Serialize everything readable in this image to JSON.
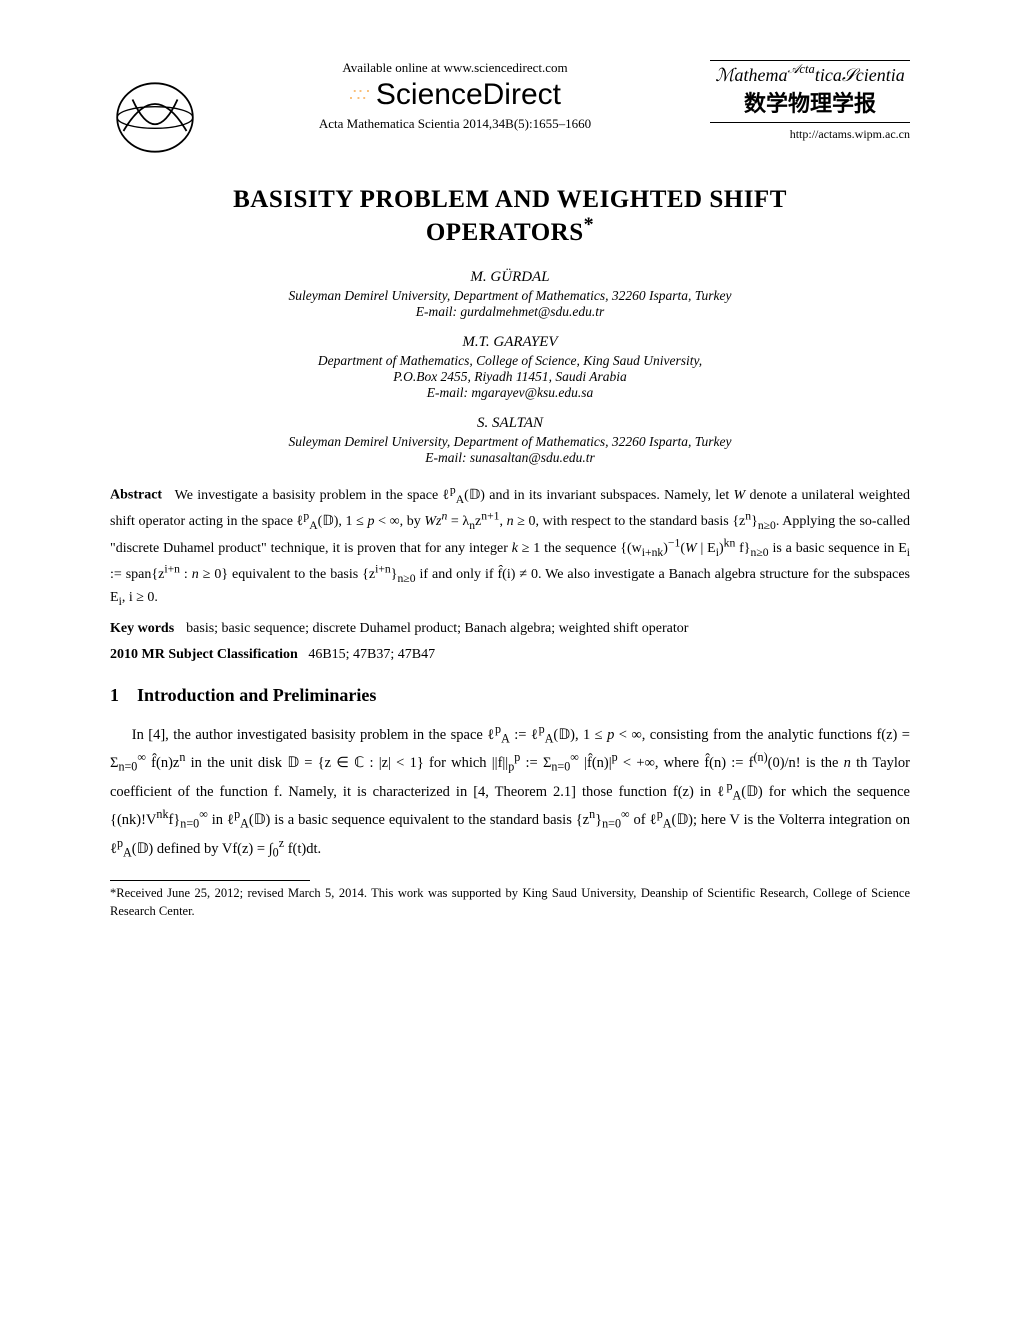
{
  "header": {
    "available_text": "Available online at www.sciencedirect.com",
    "sciencedirect": "ScienceDirect",
    "citation": "Acta Mathematica Scientia 2014,34B(5):1655–1660",
    "journal_script": "Acta Mathematica Scientia",
    "chinese": "数学物理学报",
    "url": "http://actams.wipm.ac.cn"
  },
  "title": "BASISITY PROBLEM AND WEIGHTED SHIFT OPERATORS*",
  "authors": [
    {
      "name": "M. GÜRDAL",
      "aff": "Suleyman Demirel University, Department of Mathematics, 32260 Isparta, Turkey",
      "email": "E-mail: gurdalmehmet@sdu.edu.tr"
    },
    {
      "name": "M.T. GARAYEV",
      "aff1": "Department of Mathematics, College of Science, King Saud University,",
      "aff2": "P.O.Box 2455, Riyadh 11451, Saudi Arabia",
      "email": "E-mail: mgarayev@ksu.edu.sa"
    },
    {
      "name": "S. SALTAN",
      "aff": "Suleyman Demirel University, Department of Mathematics, 32260 Isparta, Turkey",
      "email": "E-mail: sunasaltan@sdu.edu.tr"
    }
  ],
  "abstract": {
    "label": "Abstract",
    "text_html": "We investigate a basisity problem in the space ℓ<sup>p</sup><sub>A</sub>(𝔻) and in its invariant subspaces. Namely, let <i>W</i> denote a unilateral weighted shift operator acting in the space ℓ<sup>p</sup><sub>A</sub>(𝔻), 1 ≤ <i>p</i> &lt; ∞, by <i>Wz<sup>n</sup></i> = λ<sub>n</sub>z<sup>n+1</sup>, <i>n</i> ≥ 0, with respect to the standard basis {z<sup>n</sup>}<sub>n≥0</sub>. Applying the so-called \"discrete Duhamel product\" technique, it is proven that for any integer <i>k</i> ≥ 1 the sequence {(w<sub>i+nk</sub>)<sup>−1</sup>(<i>W</i> | E<sub>i</sub>)<sup>kn</sup> f}<sub>n≥0</sub> is a basic sequence in E<sub>i</sub> := span{z<sup>i+n</sup> : <i>n</i> ≥ 0} equivalent to the basis {z<sup>i+n</sup>}<sub>n≥0</sub> if and only if f̂(i) ≠ 0. We also investigate a Banach algebra structure for the subspaces E<sub>i</sub>, i ≥ 0."
  },
  "keywords": {
    "label": "Key words",
    "text": "basis; basic sequence; discrete Duhamel product; Banach algebra; weighted shift operator"
  },
  "classification": {
    "label": "2010 MR Subject Classification",
    "codes": "46B15; 47B37; 47B47"
  },
  "section1": {
    "number": "1",
    "title": "Introduction and Preliminaries",
    "para_html": "In [4], the author investigated basisity problem in the space ℓ<sup>p</sup><sub>A</sub> := ℓ<sup>p</sup><sub>A</sub>(𝔻), 1 ≤ <i>p</i> &lt; ∞, consisting from the analytic functions f(z) = Σ<sub>n=0</sub><sup>∞</sup> f̂(n)z<sup>n</sup> in the unit disk 𝔻 = {z ∈ ℂ : |z| &lt; 1} for which ||f||<sub>p</sub><sup>p</sup> := Σ<sub>n=0</sub><sup>∞</sup> |f̂(n)|<sup>p</sup> &lt; +∞, where f̂(n) := f<sup>(n)</sup>(0)/n! is the <i>n</i> th Taylor coefficient of the function f. Namely, it is characterized in [4, Theorem 2.1] those function f(z) in ℓ<sup>p</sup><sub>A</sub>(𝔻) for which the sequence {(nk)!V<sup>nk</sup>f}<sub>n=0</sub><sup>∞</sup> in ℓ<sup>p</sup><sub>A</sub>(𝔻) is a basic sequence equivalent to the standard basis {z<sup>n</sup>}<sub>n=0</sub><sup>∞</sup> of ℓ<sup>p</sup><sub>A</sub>(𝔻); here V is the Volterra integration on ℓ<sup>p</sup><sub>A</sub>(𝔻) defined by Vf(z) = ∫<sub>0</sub><sup>z</sup> f(t)dt."
  },
  "footnote": "*Received June 25, 2012; revised March 5, 2014. This work was supported by King Saud University, Deanship of Scientific Research, College of Science Research Center.",
  "colors": {
    "text": "#000000",
    "background": "#ffffff",
    "accent": "#f7941e"
  }
}
